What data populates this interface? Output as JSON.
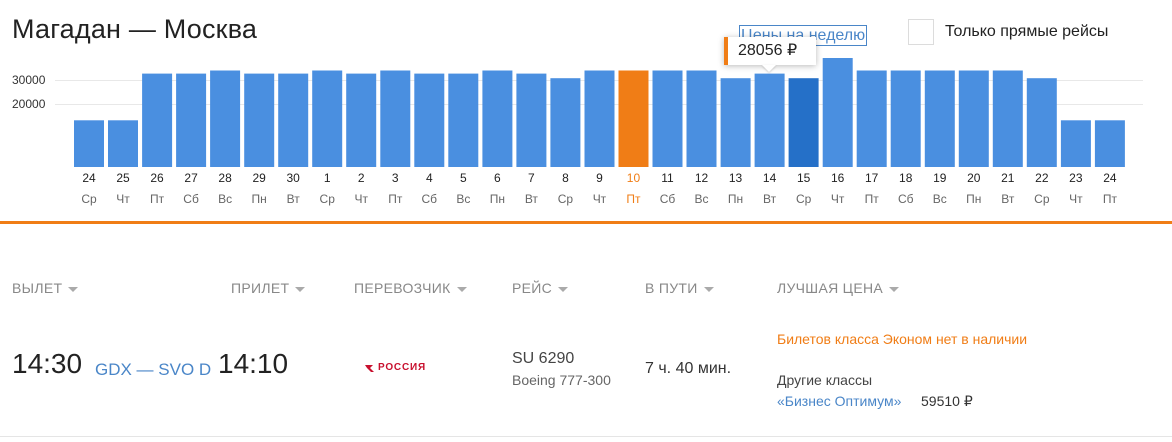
{
  "route": {
    "title": "Магадан — Москва"
  },
  "controls": {
    "week_prices_link": "Цены на неделю",
    "direct_only_label": "Только прямые рейсы",
    "direct_only_checked": false
  },
  "tooltip": {
    "price": "28056 ₽"
  },
  "colors": {
    "bar": "#4a8fe0",
    "bar_hover": "#2570c8",
    "bar_selected": "#f07d16",
    "accent": "#f07d16",
    "link": "#4a86c8"
  },
  "chart_data": {
    "type": "bar",
    "y_ticks": [
      "30000",
      "20000"
    ],
    "selected_index": 16,
    "hover_index": 21,
    "days": [
      {
        "day": "24",
        "weekday": "Ср",
        "value": 15000
      },
      {
        "day": "25",
        "weekday": "Чт",
        "value": 15000
      },
      {
        "day": "26",
        "weekday": "Пт",
        "value": 30000
      },
      {
        "day": "27",
        "weekday": "Сб",
        "value": 30000
      },
      {
        "day": "28",
        "weekday": "Вс",
        "value": 31000
      },
      {
        "day": "29",
        "weekday": "Пн",
        "value": 30000
      },
      {
        "day": "30",
        "weekday": "Вт",
        "value": 30000
      },
      {
        "day": "1",
        "weekday": "Ср",
        "value": 31000
      },
      {
        "day": "2",
        "weekday": "Чт",
        "value": 30000
      },
      {
        "day": "3",
        "weekday": "Пт",
        "value": 31000
      },
      {
        "day": "4",
        "weekday": "Сб",
        "value": 30000
      },
      {
        "day": "5",
        "weekday": "Вс",
        "value": 30000
      },
      {
        "day": "6",
        "weekday": "Пн",
        "value": 31000
      },
      {
        "day": "7",
        "weekday": "Вт",
        "value": 30000
      },
      {
        "day": "8",
        "weekday": "Ср",
        "value": 28500
      },
      {
        "day": "9",
        "weekday": "Чт",
        "value": 31000
      },
      {
        "day": "10",
        "weekday": "Пт",
        "value": 31000
      },
      {
        "day": "11",
        "weekday": "Сб",
        "value": 31000
      },
      {
        "day": "12",
        "weekday": "Вс",
        "value": 31000
      },
      {
        "day": "13",
        "weekday": "Пн",
        "value": 28500
      },
      {
        "day": "14",
        "weekday": "Вт",
        "value": 30000
      },
      {
        "day": "15",
        "weekday": "Ср",
        "value": 28500
      },
      {
        "day": "16",
        "weekday": "Чт",
        "value": 35000
      },
      {
        "day": "17",
        "weekday": "Пт",
        "value": 31000
      },
      {
        "day": "18",
        "weekday": "Сб",
        "value": 31000
      },
      {
        "day": "19",
        "weekday": "Вс",
        "value": 31000
      },
      {
        "day": "20",
        "weekday": "Пн",
        "value": 31000
      },
      {
        "day": "21",
        "weekday": "Вт",
        "value": 31000
      },
      {
        "day": "22",
        "weekday": "Ср",
        "value": 28500
      },
      {
        "day": "23",
        "weekday": "Чт",
        "value": 15000
      },
      {
        "day": "24",
        "weekday": "Пт",
        "value": 15000
      }
    ]
  },
  "table": {
    "headers": {
      "departure": "ВЫЛЕТ",
      "arrival": "ПРИЛЕТ",
      "carrier": "ПЕРЕВОЗЧИК",
      "flight": "РЕЙС",
      "duration": "В ПУТИ",
      "best_price": "ЛУЧШАЯ ЦЕНА"
    },
    "row": {
      "departure_time": "14:30",
      "airports": "GDX — SVO D",
      "arrival_time": "14:10",
      "airline": "РОССИЯ",
      "flight_number": "SU 6290",
      "aircraft": "Boeing 777-300",
      "duration": "7 ч. 40 мин.",
      "no_economy_text": "Билетов класса Эконом нет в наличии",
      "other_classes_label": "Другие классы",
      "business_link": "«Бизнес Оптимум»",
      "business_price": "59510 ₽"
    }
  }
}
